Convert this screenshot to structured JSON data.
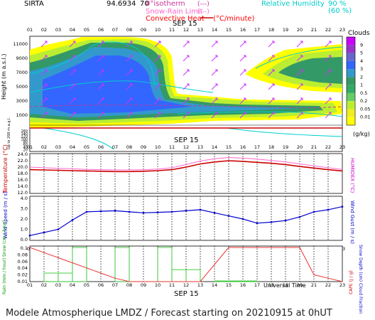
{
  "header": {
    "site": "SIRTA",
    "coords": "94.6934",
    "coords_tail": "70",
    "isotherm_label": "0°isotherm",
    "isotherm_key": "(---)",
    "snowrain_label": "Snow-Rain Limit",
    "snowrain_key": "(---)",
    "convective_label": "Convective Heat",
    "convective_key": "(°C/minute)",
    "rh_label": "Relative Humidity",
    "rh_90": "90 %",
    "rh_60": "(60 %)"
  },
  "date_label": "SEP 15",
  "hours": [
    "01",
    "02",
    "03",
    "04",
    "05",
    "06",
    "07",
    "08",
    "09",
    "10",
    "11",
    "12",
    "13",
    "14",
    "15",
    "16",
    "17",
    "18",
    "19",
    "20",
    "21",
    "22",
    "23"
  ],
  "panel_clouds": {
    "ylabel": "Height (m a.s.l.)",
    "ylabel2": "Up to 200 m a.g.l.",
    "yticks_upper": [
      "11000",
      "9000",
      "7000",
      "5000",
      "3000",
      "1000"
    ],
    "yticks_lower": [
      "160",
      "140",
      "120",
      "100",
      "80",
      "60",
      "40",
      "20"
    ],
    "colorbar_title": "Clouds",
    "colorbar_ticks": [
      "9",
      "5",
      "4",
      "3",
      "2",
      "1",
      "0.5",
      "0.2",
      "0.05",
      "0.01"
    ],
    "colorbar_colors": [
      "#cc00ff",
      "#9933cc",
      "#6666cc",
      "#3366ff",
      "#3399cc",
      "#339966",
      "#33aa66",
      "#66cc66",
      "#bbee33",
      "#eeee22",
      "#ffff00"
    ],
    "colorbar_unit": "(g/kg)"
  },
  "panel_temp": {
    "ylabel": "Temperature (°C)",
    "ylabel_right": "HUMIDEX (°C)",
    "yticks": [
      "24.0",
      "22.0",
      "20.0",
      "18.0",
      "16.0",
      "14.0",
      "12.0"
    ]
  },
  "panel_wind": {
    "ylabel": "Wind Speed (m / s)",
    "ylabel_right": "Wind Gust (m / s)",
    "yticks": [
      "4.0",
      "3.0",
      "2.0",
      "1.0",
      "0.0"
    ]
  },
  "panel_rain": {
    "ylabel": "Rain (mm / hour) Snow (cm / hour)",
    "ylabel_right": "Snow Depth (cm) Cloud Fraction",
    "ylabel_far": "CAPE (J / g)",
    "yticks": [
      "0.1",
      "0.08",
      "0.06",
      "0.04",
      "0.02",
      "0.01"
    ],
    "xlabel": "Universal Time"
  },
  "footer": "Modele Atmospherique LMDZ / Forecast starting on 20210915 at 0hUT",
  "chart_data": [
    {
      "type": "line",
      "title": "Temperature",
      "x": [
        "01",
        "02",
        "03",
        "04",
        "05",
        "06",
        "07",
        "08",
        "09",
        "10",
        "11",
        "12",
        "13",
        "14",
        "15",
        "16",
        "17",
        "18",
        "19",
        "20",
        "21",
        "22",
        "23"
      ],
      "series": [
        {
          "values": [
            19.2,
            19.1,
            19.0,
            18.9,
            18.8,
            18.7,
            18.6,
            18.6,
            18.7,
            18.9,
            19.2,
            20.0,
            21.0,
            21.6,
            22.0,
            21.8,
            21.5,
            21.2,
            20.8,
            20.2,
            19.7,
            19.2,
            18.8
          ]
        },
        {
          "values": [
            20.0,
            19.8,
            19.6,
            19.5,
            19.3,
            19.2,
            19.1,
            19.1,
            19.2,
            19.4,
            19.8,
            20.8,
            21.9,
            22.6,
            23.0,
            22.8,
            22.5,
            22.1,
            21.6,
            21.0,
            20.4,
            19.8,
            19.3
          ]
        }
      ],
      "ylim": [
        12,
        24
      ]
    },
    {
      "type": "line",
      "title": "Wind Speed",
      "x": [
        "01",
        "02",
        "03",
        "04",
        "05",
        "06",
        "07",
        "08",
        "09",
        "10",
        "11",
        "12",
        "13",
        "14",
        "15",
        "16",
        "17",
        "18",
        "19",
        "20",
        "21",
        "22",
        "23"
      ],
      "series": [
        {
          "values": [
            0.4,
            0.7,
            1.0,
            1.9,
            2.7,
            2.75,
            2.8,
            2.7,
            2.6,
            2.65,
            2.7,
            2.8,
            2.9,
            2.6,
            2.3,
            2.0,
            1.6,
            1.7,
            1.85,
            2.2,
            2.7,
            2.9,
            3.2
          ]
        }
      ],
      "ylim": [
        0,
        4
      ]
    },
    {
      "type": "bar",
      "title": "Rain",
      "categories": [
        "01",
        "02",
        "03",
        "04",
        "05",
        "06",
        "07",
        "08",
        "09",
        "10",
        "11",
        "12",
        "13",
        "14",
        "15",
        "16",
        "17",
        "18",
        "19",
        "20",
        "21",
        "22",
        "23"
      ],
      "values": [
        0,
        0.025,
        0.025,
        0.1,
        0,
        0,
        0.1,
        0,
        0,
        0.1,
        0.035,
        0.035,
        0.0,
        0.002,
        0.002,
        0.002,
        0.0,
        0.0,
        0,
        0,
        0,
        0,
        0
      ],
      "ylim": [
        0,
        0.1
      ]
    },
    {
      "type": "line",
      "title": "CAPE",
      "x": [
        "01",
        "02",
        "03",
        "04",
        "05",
        "06",
        "07",
        "08",
        "09",
        "10",
        "11",
        "12",
        "13",
        "14",
        "15",
        "16",
        "17",
        "18",
        "19",
        "20",
        "21",
        "22",
        "23"
      ],
      "values": [
        0.1,
        0.085,
        0.07,
        0.055,
        0.04,
        0.025,
        0.01,
        0,
        0,
        0,
        0,
        0,
        0.0,
        0.05,
        0.1,
        0.1,
        0.1,
        0.1,
        0.1,
        0.1,
        0.02,
        0.01,
        0.0
      ]
    }
  ]
}
